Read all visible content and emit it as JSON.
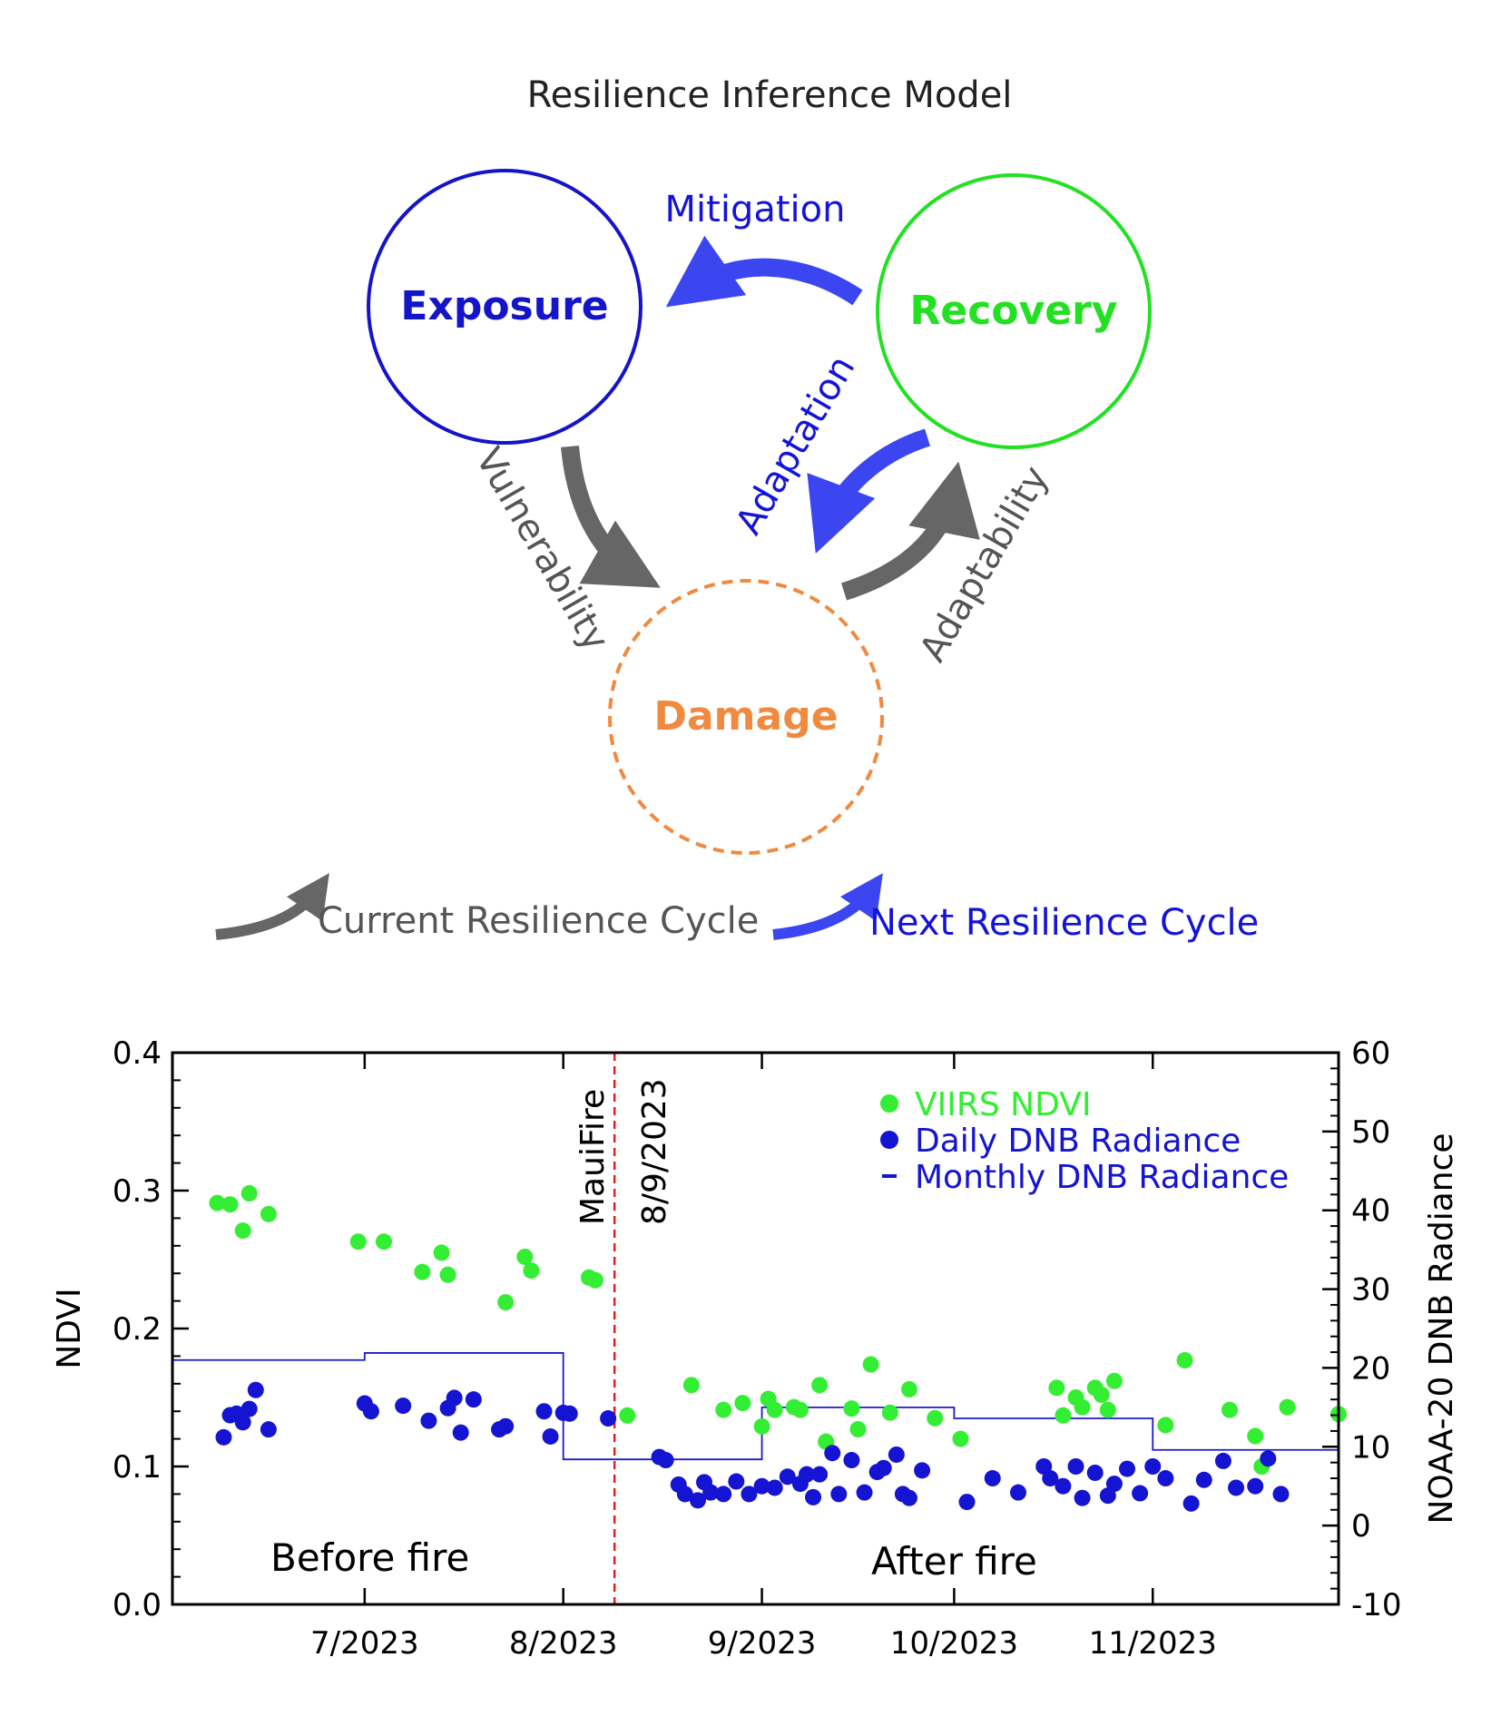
{
  "diagram": {
    "title": "Resilience Inference Model",
    "nodes": {
      "exposure": "Exposure",
      "recovery": "Recovery",
      "damage": "Damage"
    },
    "edges": {
      "mitigation": "Mitigation",
      "vulnerability": "Vulnerability",
      "adaptation": "Adaptation",
      "adaptability": "Adaptability"
    },
    "legend": {
      "current_cycle": "Current Resilience Cycle",
      "next_cycle": "Next Resilience Cycle"
    },
    "colors": {
      "exposure": "#1414c8",
      "recovery": "#22e022",
      "damage": "#f08a40",
      "blue_arrow": "#3b46f0",
      "gray_arrow": "#666666",
      "label_gray": "#555555"
    }
  },
  "chart_data": {
    "type": "scatter",
    "ylabel": "NDVI",
    "y2label": "NOAA-20 DNB Radiance",
    "ylim": [
      0.0,
      0.4
    ],
    "y2lim": [
      -10,
      60
    ],
    "xlim": [
      "2023-06-01",
      "2023-11-30"
    ],
    "y_ticks": [
      "0.0",
      "0.1",
      "0.2",
      "0.3",
      "0.4"
    ],
    "y2_ticks": [
      "-10",
      "0",
      "10",
      "20",
      "30",
      "40",
      "50",
      "60"
    ],
    "x_ticks": [
      {
        "date": "2023-07-01",
        "label": "7/2023"
      },
      {
        "date": "2023-08-01",
        "label": "8/2023"
      },
      {
        "date": "2023-09-01",
        "label": "9/2023"
      },
      {
        "date": "2023-10-01",
        "label": "10/2023"
      },
      {
        "date": "2023-11-01",
        "label": "11/2023"
      }
    ],
    "event": {
      "date": "2023-08-09",
      "label_name": "MauiFire",
      "label_date": "8/9/2023",
      "color": "#e02020"
    },
    "annotations": {
      "before": "Before fire",
      "after": "After fire"
    },
    "legend": {
      "ndvi": "VIIRS NDVI",
      "daily": "Daily DNB Radiance",
      "monthly": "Monthly DNB Radiance",
      "position": "top-right"
    },
    "series": [
      {
        "name": "VIIRS NDVI",
        "axis": "left",
        "color": "#33ee33",
        "x": [
          "2023-06-08",
          "2023-06-10",
          "2023-06-12",
          "2023-06-13",
          "2023-06-16",
          "2023-06-30",
          "2023-07-04",
          "2023-07-10",
          "2023-07-13",
          "2023-07-14",
          "2023-07-23",
          "2023-07-26",
          "2023-07-27",
          "2023-08-05",
          "2023-08-06",
          "2023-08-11",
          "2023-08-21",
          "2023-08-26",
          "2023-08-29",
          "2023-09-01",
          "2023-09-02",
          "2023-09-03",
          "2023-09-06",
          "2023-09-07",
          "2023-09-10",
          "2023-09-11",
          "2023-09-15",
          "2023-09-16",
          "2023-09-18",
          "2023-09-21",
          "2023-09-24",
          "2023-09-28",
          "2023-10-02",
          "2023-10-17",
          "2023-10-18",
          "2023-10-20",
          "2023-10-21",
          "2023-10-23",
          "2023-10-24",
          "2023-10-25",
          "2023-10-26",
          "2023-11-03",
          "2023-11-06",
          "2023-11-13",
          "2023-11-17",
          "2023-11-18",
          "2023-11-22",
          "2023-11-30"
        ],
        "y": [
          0.291,
          0.29,
          0.271,
          0.298,
          0.283,
          0.263,
          0.263,
          0.241,
          0.255,
          0.239,
          0.219,
          0.252,
          0.242,
          0.237,
          0.235,
          0.137,
          0.159,
          0.141,
          0.146,
          0.129,
          0.149,
          0.141,
          0.143,
          0.141,
          0.159,
          0.118,
          0.142,
          0.127,
          0.174,
          0.139,
          0.156,
          0.135,
          0.12,
          0.157,
          0.137,
          0.15,
          0.143,
          0.157,
          0.152,
          0.141,
          0.162,
          0.13,
          0.177,
          0.141,
          0.122,
          0.1,
          0.143,
          0.138
        ]
      },
      {
        "name": "Daily DNB Radiance",
        "axis": "right",
        "color": "#1414d2",
        "x": [
          "2023-06-09",
          "2023-06-10",
          "2023-06-11",
          "2023-06-12",
          "2023-06-13",
          "2023-06-14",
          "2023-06-16",
          "2023-07-01",
          "2023-07-02",
          "2023-07-07",
          "2023-07-11",
          "2023-07-14",
          "2023-07-15",
          "2023-07-16",
          "2023-07-18",
          "2023-07-22",
          "2023-07-23",
          "2023-07-29",
          "2023-07-30",
          "2023-08-01",
          "2023-08-02",
          "2023-08-08",
          "2023-08-16",
          "2023-08-17",
          "2023-08-19",
          "2023-08-20",
          "2023-08-22",
          "2023-08-23",
          "2023-08-24",
          "2023-08-26",
          "2023-08-28",
          "2023-08-30",
          "2023-09-01",
          "2023-09-03",
          "2023-09-05",
          "2023-09-07",
          "2023-09-08",
          "2023-09-09",
          "2023-09-10",
          "2023-09-12",
          "2023-09-13",
          "2023-09-15",
          "2023-09-17",
          "2023-09-19",
          "2023-09-20",
          "2023-09-22",
          "2023-09-23",
          "2023-09-24",
          "2023-09-26",
          "2023-10-03",
          "2023-10-07",
          "2023-10-11",
          "2023-10-15",
          "2023-10-16",
          "2023-10-18",
          "2023-10-20",
          "2023-10-21",
          "2023-10-23",
          "2023-10-25",
          "2023-10-26",
          "2023-10-28",
          "2023-10-30",
          "2023-11-01",
          "2023-11-03",
          "2023-11-07",
          "2023-11-09",
          "2023-11-12",
          "2023-11-14",
          "2023-11-17",
          "2023-11-19",
          "2023-11-21"
        ],
        "y": [
          11.2,
          14.0,
          14.2,
          13.1,
          14.8,
          17.2,
          12.2,
          15.5,
          14.5,
          15.2,
          13.3,
          14.9,
          16.2,
          11.8,
          16.0,
          12.2,
          12.6,
          14.5,
          11.3,
          14.3,
          14.2,
          13.6,
          8.7,
          8.3,
          5.2,
          4.0,
          3.2,
          5.5,
          4.2,
          4.0,
          5.6,
          4.0,
          5.0,
          4.8,
          6.2,
          5.3,
          6.5,
          3.6,
          6.5,
          9.2,
          4.0,
          8.3,
          4.2,
          6.8,
          7.3,
          9.0,
          4.0,
          3.5,
          7.0,
          3.0,
          6.0,
          4.2,
          7.5,
          6.0,
          5.0,
          7.5,
          3.5,
          6.7,
          3.8,
          5.3,
          7.2,
          4.1,
          7.5,
          6.0,
          2.8,
          5.8,
          8.2,
          4.8,
          5.0,
          8.5,
          4.0
        ]
      },
      {
        "name": "Monthly DNB Radiance",
        "axis": "right",
        "color": "#1414d2",
        "step": [
          {
            "from": "2023-06-01",
            "to": "2023-07-01",
            "value": 21.0
          },
          {
            "from": "2023-07-01",
            "to": "2023-08-01",
            "value": 21.9
          },
          {
            "from": "2023-08-01",
            "to": "2023-09-01",
            "value": 8.4
          },
          {
            "from": "2023-09-01",
            "to": "2023-10-01",
            "value": 15.0
          },
          {
            "from": "2023-10-01",
            "to": "2023-11-01",
            "value": 13.6
          },
          {
            "from": "2023-11-01",
            "to": "2023-11-30",
            "value": 9.6
          }
        ]
      }
    ]
  }
}
